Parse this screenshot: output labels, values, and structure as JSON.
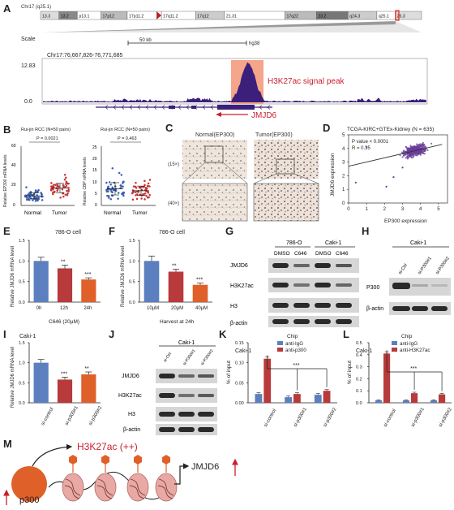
{
  "panels": {
    "A": "A",
    "B": "B",
    "C": "C",
    "D": "D",
    "E": "E",
    "F": "F",
    "G": "G",
    "H": "H",
    "I": "I",
    "J": "J",
    "K": "K",
    "L": "L",
    "M": "M"
  },
  "panel_a": {
    "chr_label": "Chr17 (q25.1)",
    "bands": [
      "13.3",
      "13.2",
      "p13.1",
      "17p12",
      "17p11.2",
      "17q11.2",
      "17q12",
      "21.31",
      "17q22",
      "23.2",
      "q24.3",
      "q25.1",
      "25.3"
    ],
    "scale_label": "Scale",
    "scale_bar": "50 kb",
    "genome": "hg38",
    "coords": "Chr17:76,667,826-76,771,685",
    "ymax": "12.83",
    "ymin": "0.0",
    "peak_label": "H3K27ac signal peak",
    "gene_label": "JMJD6"
  },
  "panel_b": {
    "left": {
      "title": "Rui-jin RCC (N=50 pairs)",
      "ylabel": "Relative EP300 mRNA levels",
      "pval": "P = 0.0021",
      "groups": [
        "Normal",
        "Tumor"
      ],
      "yticks": [
        "0",
        "20",
        "40",
        "60"
      ]
    },
    "right": {
      "title": "Rui-jin RCC (N=50 pairs)",
      "ylabel": "Relative CBP mRNA levels",
      "pval": "P = 0.463",
      "groups": [
        "Normal",
        "Tumor"
      ],
      "yticks": [
        "0",
        "5",
        "10",
        "15",
        "20",
        "25"
      ]
    }
  },
  "panel_c": {
    "normal": "Normal(EP300)",
    "tumor": "Tumor(EP300)",
    "mag1": "(15×)",
    "mag2": "(40×)"
  },
  "panel_d": {
    "title": "TCGA-KIRC+GTEx-Kidney (N = 635)",
    "pval": "P value < 0.0001",
    "r": "R = 0.35",
    "xlabel": "EP300  expression",
    "ylabel": "JMJD6 expression",
    "xticks": [
      "0",
      "1",
      "2",
      "3",
      "4",
      "5"
    ],
    "yticks": [
      "0",
      "1",
      "2",
      "3",
      "4",
      "5"
    ]
  },
  "panel_e": {
    "title": "786-O cell",
    "ylabel": "Relative JMJD6 mRNA level",
    "xlabel": "C646 (20μM)",
    "yticks": [
      "0.0",
      "0.5",
      "1.0",
      "1.5"
    ]
  },
  "panel_f": {
    "title": "786-O cell",
    "ylabel": "Relative JMJD6 mRNA level",
    "xlabel": "Harvest at 24h",
    "yticks": [
      "0.0",
      "0.5",
      "1.0",
      "1.5"
    ]
  },
  "panel_g": {
    "cells": [
      "786-O",
      "Caki-1"
    ],
    "lanes": [
      "DMSO",
      "C646",
      "DMSO",
      "C646"
    ],
    "rows": [
      "JMJD6",
      "H3K27ac",
      "H3",
      "β-actin"
    ]
  },
  "panel_h": {
    "cell": "Caki-1",
    "lanes": [
      "si-Ctrl",
      "si-P300#1",
      "si-P300#2"
    ],
    "rows": [
      "P300",
      "β-actin"
    ]
  },
  "panel_i": {
    "title": "Caki-1",
    "ylabel": "Relative JMJD6 mRNA level",
    "yticks": [
      "0.0",
      "0.5",
      "1.0",
      "1.5"
    ]
  },
  "panel_j": {
    "cell": "Caki-1",
    "lanes": [
      "si-Ctrl",
      "si-P300#1",
      "si-P300#2"
    ],
    "rows": [
      "JMJD6",
      "H3K27ac",
      "H3",
      "β-actin"
    ]
  },
  "panel_k": {
    "title": "Caki-1",
    "legend_title": "Chip",
    "series": [
      "anti-IgG",
      "anti-p300"
    ],
    "ylabel": "% of input",
    "yticks": [
      "0.00",
      "0.05",
      "0.10",
      "0.15"
    ],
    "sig": "***"
  },
  "panel_l": {
    "title": "Caki-1",
    "legend_title": "Chip",
    "series": [
      "anti-IgG",
      "anti-H3K27ac"
    ],
    "ylabel": "% of input",
    "yticks": [
      "0.0",
      "0.1",
      "0.2",
      "0.3",
      "0.4",
      "0.5"
    ],
    "sig": "***"
  },
  "panel_m": {
    "top_label": "H3K27ac (++)",
    "left_label": "p300",
    "right_label": "JMJD6"
  },
  "colors": {
    "blue": "#5b7fbf",
    "red": "#b83a3a",
    "orange": "#e0602a",
    "purple": "#3b1f7a",
    "peak": "#f4a58a"
  },
  "chart_data": [
    {
      "type": "bar",
      "title": "786-O cell",
      "xlabel": "C646 (20μM)",
      "ylabel": "Relative JMJD6 mRNA level",
      "ylim": [
        0,
        1.5
      ],
      "categories": [
        "0h",
        "12h",
        "24h"
      ],
      "values": [
        1.0,
        0.82,
        0.55
      ],
      "errors": [
        0.09,
        0.08,
        0.04
      ],
      "significance": [
        "",
        "**",
        "***"
      ]
    },
    {
      "type": "bar",
      "title": "786-O cell",
      "xlabel": "Harvest at 24h",
      "ylabel": "Relative JMJD6 mRNA level",
      "ylim": [
        0,
        1.5
      ],
      "categories": [
        "10μM",
        "20μM",
        "40μM"
      ],
      "values": [
        1.0,
        0.74,
        0.42
      ],
      "errors": [
        0.12,
        0.06,
        0.04
      ],
      "significance": [
        "",
        "**",
        "***"
      ]
    },
    {
      "type": "bar",
      "title": "Caki-1",
      "ylabel": "Relative JMJD6 mRNA level",
      "ylim": [
        0,
        1.5
      ],
      "categories": [
        "si-control",
        "si-p300#1",
        "si-p300#2"
      ],
      "values": [
        1.0,
        0.58,
        0.71
      ],
      "errors": [
        0.08,
        0.06,
        0.06
      ],
      "significance": [
        "",
        "***",
        "**"
      ]
    },
    {
      "type": "bar",
      "title": "Caki-1",
      "ylabel": "% of input",
      "ylim": [
        0,
        0.15
      ],
      "categories": [
        "si-control",
        "si-p300#1",
        "si-p300#2"
      ],
      "series": [
        {
          "name": "anti-IgG",
          "values": [
            0.022,
            0.014,
            0.02
          ]
        },
        {
          "name": "anti-p300",
          "values": [
            0.11,
            0.022,
            0.03
          ]
        }
      ],
      "errors": [
        [
          0.003,
          0.003,
          0.003
        ],
        [
          0.005,
          0.003,
          0.003
        ]
      ]
    },
    {
      "type": "bar",
      "title": "Caki-1",
      "ylabel": "% of input",
      "ylim": [
        0,
        0.5
      ],
      "categories": [
        "si-control",
        "si-p300#1",
        "si-p300#2"
      ],
      "series": [
        {
          "name": "anti-IgG",
          "values": [
            0.02,
            0.02,
            0.02
          ]
        },
        {
          "name": "anti-H3K27ac",
          "values": [
            0.41,
            0.08,
            0.07
          ]
        }
      ],
      "errors": [
        [
          0.005,
          0.005,
          0.005
        ],
        [
          0.015,
          0.008,
          0.008
        ]
      ]
    },
    {
      "type": "scatter",
      "title": "TCGA-KIRC+GTEx-Kidney (N = 635)",
      "xlabel": "EP300  expression",
      "ylabel": "JMJD6 expression",
      "xlim": [
        0,
        5.5
      ],
      "ylim": [
        0,
        5
      ],
      "trend": {
        "x": [
          0,
          5.2
        ],
        "y": [
          2.7,
          4.3
        ]
      }
    }
  ]
}
